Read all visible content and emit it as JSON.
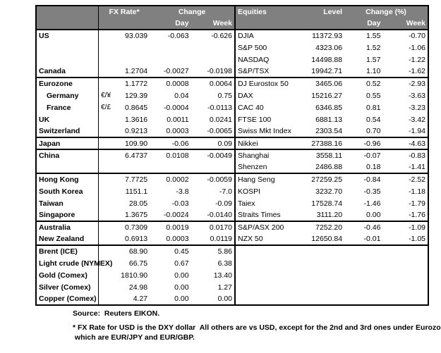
{
  "colors": {
    "header_bg": "#808080",
    "header_text": "#ffffff",
    "border": "#000000"
  },
  "header": {
    "fx": {
      "rate": "FX Rate*",
      "change": "Change",
      "day": "Day",
      "week": "Week"
    },
    "equities": {
      "name": "Equities",
      "level": "Level",
      "change": "Change (%)",
      "day": "Day",
      "week": "Week"
    }
  },
  "groups": [
    {
      "rows": [
        {
          "name": "US",
          "pair": "",
          "rate": "93.039",
          "day": "-0.063",
          "week": "-0.626",
          "eq_name": "DJIA",
          "eq_level": "11372.93",
          "eq_day": "1.55",
          "eq_week": "-0.70",
          "indent": false
        },
        {
          "name": "",
          "pair": "",
          "rate": "",
          "day": "",
          "week": "",
          "eq_name": "S&P 500",
          "eq_level": "4323.06",
          "eq_day": "1.52",
          "eq_week": "-1.06",
          "indent": false
        },
        {
          "name": "",
          "pair": "",
          "rate": "",
          "day": "",
          "week": "",
          "eq_name": "NASDAQ",
          "eq_level": "14498.88",
          "eq_day": "1.57",
          "eq_week": "-1.22",
          "indent": false
        },
        {
          "name": "Canada",
          "pair": "",
          "rate": "1.2704",
          "day": "-0.0027",
          "week": "-0.0198",
          "eq_name": "S&P/TSX",
          "eq_level": "19942.71",
          "eq_day": "1.10",
          "eq_week": "-1.62",
          "indent": false
        }
      ]
    },
    {
      "rows": [
        {
          "name": "Eurozone",
          "pair": "",
          "rate": "1.1772",
          "day": "0.0008",
          "week": "0.0064",
          "eq_name": "DJ Eurostox 50",
          "eq_level": "3465.06",
          "eq_day": "0.52",
          "eq_week": "-2.93",
          "indent": false
        },
        {
          "name": "Germany",
          "pair": "€/¥",
          "rate": "129.39",
          "day": "0.04",
          "week": "0.75",
          "eq_name": "DAX",
          "eq_level": "15216.27",
          "eq_day": "0.55",
          "eq_week": "-3.63",
          "indent": true
        },
        {
          "name": "France",
          "pair": "€/£",
          "rate": "0.8645",
          "day": "-0.0004",
          "week": "-0.0113",
          "eq_name": "CAC 40",
          "eq_level": "6346.85",
          "eq_day": "0.81",
          "eq_week": "-3.23",
          "indent": true
        },
        {
          "name": "UK",
          "pair": "",
          "rate": "1.3616",
          "day": "0.0011",
          "week": "0.0241",
          "eq_name": "FTSE 100",
          "eq_level": "6881.13",
          "eq_day": "0.54",
          "eq_week": "-3.42",
          "indent": false
        },
        {
          "name": "Switzerland",
          "pair": "",
          "rate": "0.9213",
          "day": "0.0003",
          "week": "-0.0065",
          "eq_name": "Swiss Mkt Index",
          "eq_level": "2303.54",
          "eq_day": "0.70",
          "eq_week": "-1.94",
          "indent": false
        }
      ]
    },
    {
      "rows": [
        {
          "name": "Japan",
          "pair": "",
          "rate": "109.90",
          "day": "-0.06",
          "week": "0.09",
          "eq_name": "Nikkei",
          "eq_level": "27388.16",
          "eq_day": "-0.96",
          "eq_week": "-4.63",
          "indent": false
        }
      ]
    },
    {
      "rows": [
        {
          "name": "China",
          "pair": "",
          "rate": "6.4737",
          "day": "0.0108",
          "week": "-0.0049",
          "eq_name": "Shanghai",
          "eq_level": "3558.11",
          "eq_day": "-0.07",
          "eq_week": "-0.83",
          "indent": false
        },
        {
          "name": "",
          "pair": "",
          "rate": "",
          "day": "",
          "week": "",
          "eq_name": "Shenzen",
          "eq_level": "2486.88",
          "eq_day": "0.18",
          "eq_week": "-1.41",
          "indent": false
        }
      ]
    },
    {
      "rows": [
        {
          "name": "Hong Kong",
          "pair": "",
          "rate": "7.7725",
          "day": "0.0002",
          "week": "-0.0059",
          "eq_name": "Hang Seng",
          "eq_level": "27259.25",
          "eq_day": "-0.84",
          "eq_week": "-2.52",
          "indent": false
        },
        {
          "name": "South Korea",
          "pair": "",
          "rate": "1151.1",
          "day": "-3.8",
          "week": "-7.0",
          "eq_name": "KOSPI",
          "eq_level": "3232.70",
          "eq_day": "-0.35",
          "eq_week": "-1.18",
          "indent": false
        },
        {
          "name": "Taiwan",
          "pair": "",
          "rate": "28.05",
          "day": "-0.03",
          "week": "-0.09",
          "eq_name": "Taiex",
          "eq_level": "17528.74",
          "eq_day": "-1.46",
          "eq_week": "-1.79",
          "indent": false
        },
        {
          "name": "Singapore",
          "pair": "",
          "rate": "1.3675",
          "day": "-0.0024",
          "week": "-0.0140",
          "eq_name": "Straits Times",
          "eq_level": "3111.20",
          "eq_day": "0.00",
          "eq_week": "-1.76",
          "indent": false
        }
      ]
    },
    {
      "rows": [
        {
          "name": "Australia",
          "pair": "",
          "rate": "0.7309",
          "day": "0.0019",
          "week": "0.0170",
          "eq_name": "S&P/ASX 200",
          "eq_level": "7252.20",
          "eq_day": "-0.46",
          "eq_week": "-1.09",
          "indent": false
        },
        {
          "name": "New Zealand",
          "pair": "",
          "rate": "0.6913",
          "day": "0.0003",
          "week": "0.0119",
          "eq_name": "NZX 50",
          "eq_level": "12650.84",
          "eq_day": "-0.01",
          "eq_week": "-1.05",
          "indent": false
        }
      ]
    },
    {
      "rows": [
        {
          "name": "Brent (ICE)",
          "pair": "",
          "rate": "68.90",
          "day": "0.45",
          "week": "5.86",
          "eq_name": "",
          "eq_level": "",
          "eq_day": "",
          "eq_week": "",
          "indent": false
        },
        {
          "name": "Light crude (NYMEX)",
          "pair": "",
          "rate": "66.75",
          "day": "0.67",
          "week": "6.38",
          "eq_name": "",
          "eq_level": "",
          "eq_day": "",
          "eq_week": "",
          "indent": false
        },
        {
          "name": "Gold (Comex)",
          "pair": "",
          "rate": "1810.90",
          "day": "0.00",
          "week": "13.40",
          "eq_name": "",
          "eq_level": "",
          "eq_day": "",
          "eq_week": "",
          "indent": false
        },
        {
          "name": "Silver (Comex)",
          "pair": "",
          "rate": "24.98",
          "day": "0.00",
          "week": "1.27",
          "eq_name": "",
          "eq_level": "",
          "eq_day": "",
          "eq_week": "",
          "indent": false
        },
        {
          "name": "Copper (Comex)",
          "pair": "",
          "rate": "4.27",
          "day": "0.00",
          "week": "0.00",
          "eq_name": "",
          "eq_level": "",
          "eq_day": "",
          "eq_week": "",
          "indent": false
        }
      ]
    }
  ],
  "notes": {
    "source": "Source:  Reuters EIKON.",
    "footnote": "* FX Rate for USD is the DXY dollar  All others are vs USD, except for the 2nd and 3rd ones under Eurozone,\n which are EUR/JPY and EUR/GBP."
  }
}
